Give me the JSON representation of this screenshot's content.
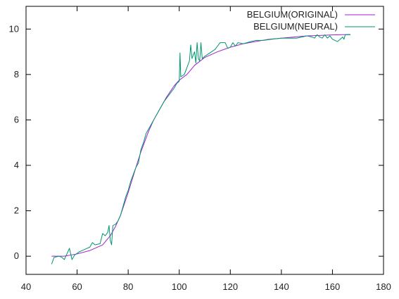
{
  "chart_data": {
    "type": "line",
    "title": "",
    "xlabel": "",
    "ylabel": "",
    "xlim": [
      40,
      180
    ],
    "ylim": [
      -0.8,
      11
    ],
    "xticks": [
      40,
      60,
      80,
      100,
      120,
      140,
      160,
      180
    ],
    "yticks": [
      0,
      2,
      4,
      6,
      8,
      10
    ],
    "grid": false,
    "legend_position": "top-right",
    "series": [
      {
        "name": "BELGIUM(ORIGINAL)",
        "color": "#a01fd0",
        "points": [
          [
            50,
            0.0
          ],
          [
            55,
            0.0
          ],
          [
            60,
            0.1
          ],
          [
            65,
            0.25
          ],
          [
            70,
            0.5
          ],
          [
            73,
            0.9
          ],
          [
            75,
            1.3
          ],
          [
            77,
            1.8
          ],
          [
            80,
            2.8
          ],
          [
            83,
            3.9
          ],
          [
            85,
            4.6
          ],
          [
            88,
            5.5
          ],
          [
            90,
            6.0
          ],
          [
            93,
            6.6
          ],
          [
            95,
            7.0
          ],
          [
            98,
            7.5
          ],
          [
            100,
            7.75
          ],
          [
            103,
            8.0
          ],
          [
            106,
            8.4
          ],
          [
            110,
            8.75
          ],
          [
            115,
            9.0
          ],
          [
            120,
            9.2
          ],
          [
            125,
            9.35
          ],
          [
            130,
            9.45
          ],
          [
            135,
            9.55
          ],
          [
            140,
            9.6
          ],
          [
            145,
            9.65
          ],
          [
            150,
            9.7
          ],
          [
            155,
            9.72
          ],
          [
            160,
            9.74
          ],
          [
            167,
            9.76
          ]
        ]
      },
      {
        "name": "BELGIUM(NEURAL)",
        "color": "#00966e",
        "points": [
          [
            50,
            -0.35
          ],
          [
            51,
            -0.05
          ],
          [
            53,
            0.0
          ],
          [
            54,
            -0.05
          ],
          [
            55,
            -0.15
          ],
          [
            56,
            0.1
          ],
          [
            57,
            0.35
          ],
          [
            58,
            -0.15
          ],
          [
            59,
            0.05
          ],
          [
            61,
            0.2
          ],
          [
            63,
            0.3
          ],
          [
            65,
            0.4
          ],
          [
            66,
            0.6
          ],
          [
            67,
            0.5
          ],
          [
            69,
            0.55
          ],
          [
            70,
            1.0
          ],
          [
            71,
            0.9
          ],
          [
            72,
            1.05
          ],
          [
            72.5,
            1.35
          ],
          [
            73,
            0.7
          ],
          [
            73.5,
            0.5
          ],
          [
            74,
            1.35
          ],
          [
            75,
            1.4
          ],
          [
            76,
            1.55
          ],
          [
            77,
            1.8
          ],
          [
            78,
            2.2
          ],
          [
            79,
            2.6
          ],
          [
            80,
            2.9
          ],
          [
            81,
            3.3
          ],
          [
            82,
            3.6
          ],
          [
            83,
            3.9
          ],
          [
            84,
            4.1
          ],
          [
            85,
            4.7
          ],
          [
            86,
            5.0
          ],
          [
            87,
            5.4
          ],
          [
            88,
            5.6
          ],
          [
            90,
            6.0
          ],
          [
            92,
            6.4
          ],
          [
            94,
            6.8
          ],
          [
            96,
            7.1
          ],
          [
            98,
            7.4
          ],
          [
            99,
            7.6
          ],
          [
            100,
            7.7
          ],
          [
            100.3,
            8.95
          ],
          [
            100.6,
            7.9
          ],
          [
            102,
            8.0
          ],
          [
            103,
            8.3
          ],
          [
            104,
            8.6
          ],
          [
            104.5,
            9.3
          ],
          [
            105,
            8.7
          ],
          [
            106,
            9.0
          ],
          [
            106.5,
            8.5
          ],
          [
            107,
            9.4
          ],
          [
            107.5,
            8.7
          ],
          [
            108,
            8.6
          ],
          [
            108.5,
            9.4
          ],
          [
            109,
            8.7
          ],
          [
            110,
            8.8
          ],
          [
            112,
            8.95
          ],
          [
            114,
            9.1
          ],
          [
            116,
            9.4
          ],
          [
            118,
            9.4
          ],
          [
            119,
            9.15
          ],
          [
            120,
            9.2
          ],
          [
            121,
            9.4
          ],
          [
            122,
            9.25
          ],
          [
            123,
            9.4
          ],
          [
            125,
            9.35
          ],
          [
            128,
            9.45
          ],
          [
            130,
            9.5
          ],
          [
            133,
            9.5
          ],
          [
            136,
            9.55
          ],
          [
            140,
            9.6
          ],
          [
            143,
            9.6
          ],
          [
            146,
            9.6
          ],
          [
            148,
            9.65
          ],
          [
            150,
            9.7
          ],
          [
            152,
            9.65
          ],
          [
            153,
            9.6
          ],
          [
            154,
            9.75
          ],
          [
            155,
            9.65
          ],
          [
            156,
            9.6
          ],
          [
            157,
            9.75
          ],
          [
            158,
            9.6
          ],
          [
            159,
            9.7
          ],
          [
            160,
            9.55
          ],
          [
            161,
            9.5
          ],
          [
            162,
            9.45
          ],
          [
            163,
            9.55
          ],
          [
            164,
            9.65
          ],
          [
            164.5,
            9.55
          ],
          [
            165,
            9.75
          ],
          [
            167,
            9.75
          ]
        ]
      }
    ]
  }
}
